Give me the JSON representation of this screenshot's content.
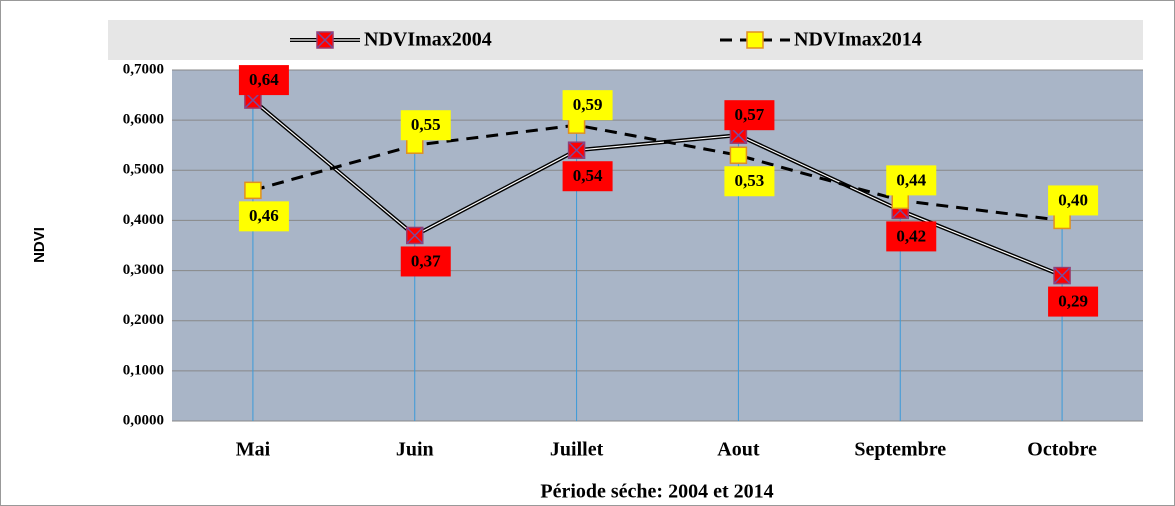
{
  "chart_data": {
    "type": "line",
    "xlabel": "Période séche: 2004 et 2014",
    "ylabel": "NDVI",
    "categories": [
      "Mai",
      "Juin",
      "Juillet",
      "Aout",
      "Septembre",
      "Octobre"
    ],
    "series": [
      {
        "name": "NDVImax2004",
        "color": "#ff0000",
        "values": [
          0.64,
          0.37,
          0.54,
          0.57,
          0.42,
          0.29
        ],
        "value_labels": [
          "0,64",
          "0,37",
          "0,54",
          "0,57",
          "0,42",
          "0,29"
        ]
      },
      {
        "name": "NDVImax2014",
        "color": "#ffff00",
        "values": [
          0.46,
          0.55,
          0.59,
          0.53,
          0.44,
          0.4
        ],
        "value_labels": [
          "0,46",
          "0,55",
          "0,59",
          "0,53",
          "0,44",
          "0,40"
        ]
      }
    ],
    "ylim": [
      0,
      0.7
    ],
    "yticks": [
      {
        "value": 0,
        "label": "0,0000"
      },
      {
        "value": 0.1,
        "label": "0,1000"
      },
      {
        "value": 0.2,
        "label": "0,2000"
      },
      {
        "value": 0.3,
        "label": "0,3000"
      },
      {
        "value": 0.4,
        "label": "0,4000"
      },
      {
        "value": 0.5,
        "label": "0,5000"
      },
      {
        "value": 0.6,
        "label": "0,6000"
      },
      {
        "value": 0.7,
        "label": "0,7000"
      }
    ],
    "grid": true,
    "legend": "top"
  }
}
